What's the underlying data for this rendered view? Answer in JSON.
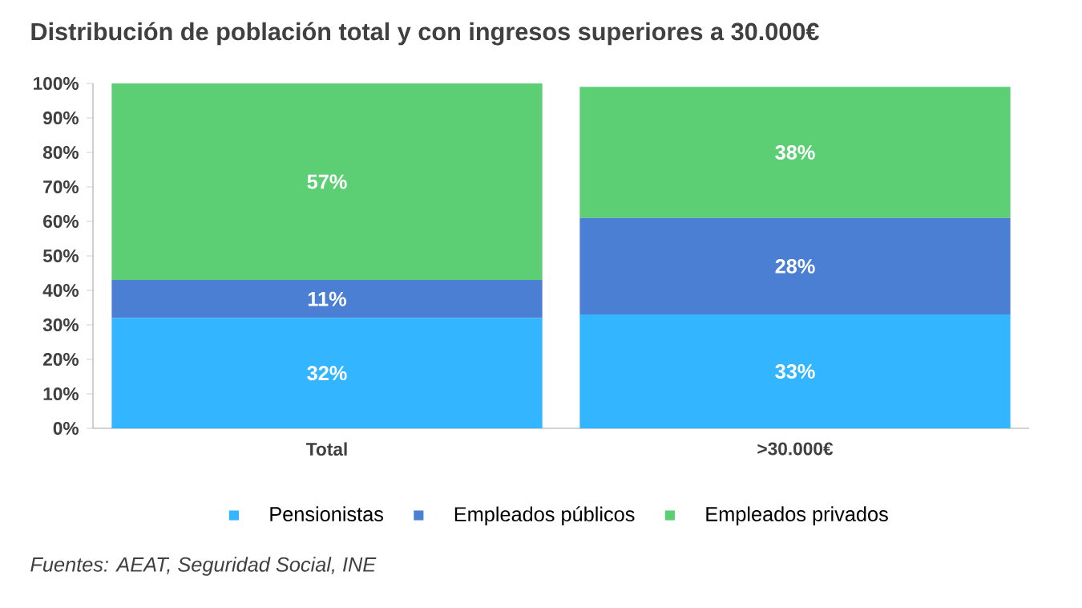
{
  "chart_data": {
    "type": "bar",
    "stacked": true,
    "title": "Distribución de población total y con ingresos superiores a 30.000€",
    "categories": [
      "Total",
      ">30.000€"
    ],
    "series": [
      {
        "name": "Pensionistas",
        "color": "#33b5ff",
        "values": [
          32,
          33
        ],
        "value_labels": [
          "32%",
          "33%"
        ]
      },
      {
        "name": "Empleados públicos",
        "color": "#4a7fd4",
        "values": [
          11,
          28
        ],
        "value_labels": [
          "11%",
          "28%"
        ]
      },
      {
        "name": "Empleados privados",
        "color": "#5ccf75",
        "values": [
          57,
          38
        ],
        "value_labels": [
          "57%",
          "38%"
        ]
      }
    ],
    "ylim": [
      0,
      100
    ],
    "yticks": [
      {
        "value": 0,
        "label": "0%"
      },
      {
        "value": 10,
        "label": "10%"
      },
      {
        "value": 20,
        "label": "20%"
      },
      {
        "value": 30,
        "label": "30%"
      },
      {
        "value": 40,
        "label": "40%"
      },
      {
        "value": 50,
        "label": "50%"
      },
      {
        "value": 60,
        "label": "60%"
      },
      {
        "value": 70,
        "label": "70%"
      },
      {
        "value": 80,
        "label": "80%"
      },
      {
        "value": 90,
        "label": "90%"
      },
      {
        "value": 100,
        "label": "100%"
      }
    ],
    "legend": "bottom",
    "annotations": [
      "*Fuentes: AEAT, Seguridad Social, INE*"
    ]
  }
}
